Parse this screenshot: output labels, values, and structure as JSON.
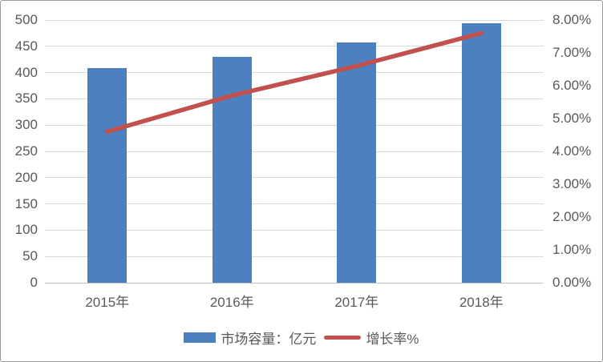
{
  "chart_data": {
    "type": "bar",
    "title": "",
    "categories": [
      "2015年",
      "2016年",
      "2017年",
      "2018年"
    ],
    "series": [
      {
        "name": "市场容量：亿元",
        "type": "bar",
        "axis": "left",
        "values": [
          408,
          430,
          458,
          494
        ]
      },
      {
        "name": "增长率%",
        "type": "line",
        "axis": "right",
        "values": [
          4.6,
          5.7,
          6.6,
          7.6
        ]
      }
    ],
    "left_axis": {
      "min": 0,
      "max": 500,
      "ticks": [
        "0",
        "50",
        "100",
        "150",
        "200",
        "250",
        "300",
        "350",
        "400",
        "450",
        "500"
      ]
    },
    "right_axis": {
      "min": 0,
      "max": 8,
      "ticks": [
        "0.00%",
        "1.00%",
        "2.00%",
        "3.00%",
        "4.00%",
        "5.00%",
        "6.00%",
        "7.00%",
        "8.00%"
      ]
    },
    "grid": true,
    "legend_position": "bottom"
  },
  "colors": {
    "bar": "#4d80be",
    "line": "#c1504e",
    "gridline": "#d9d9d9",
    "axis_line": "#bfbfbf",
    "text": "#595959",
    "border": "#9b9b9b"
  }
}
